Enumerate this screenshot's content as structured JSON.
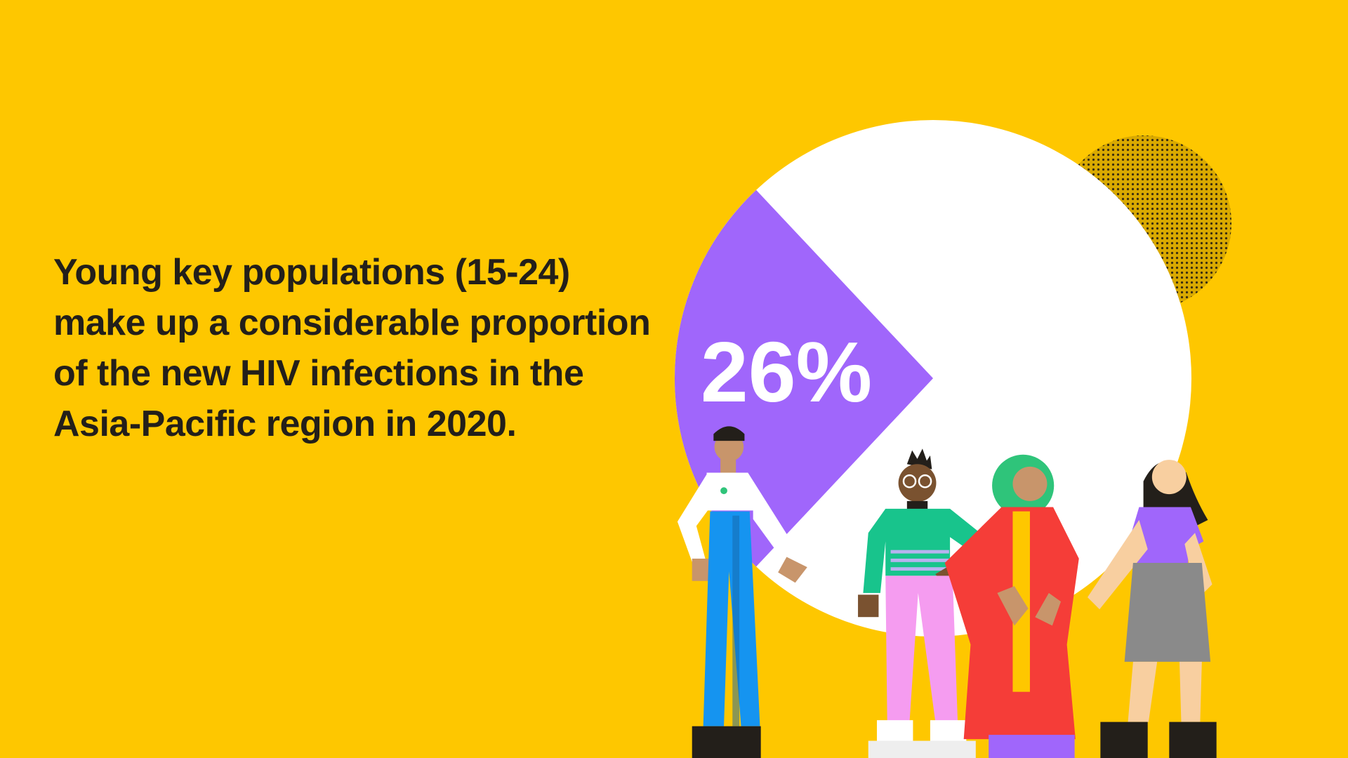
{
  "chart_data": {
    "type": "pie",
    "title": "Young key populations (15-24) make up a considerable proportion of the new HIV infections in the Asia-Pacific region in 2020.",
    "values": [
      26
    ],
    "value_labels": [
      "26%"
    ],
    "colors": [
      "#a066fb"
    ]
  }
}
